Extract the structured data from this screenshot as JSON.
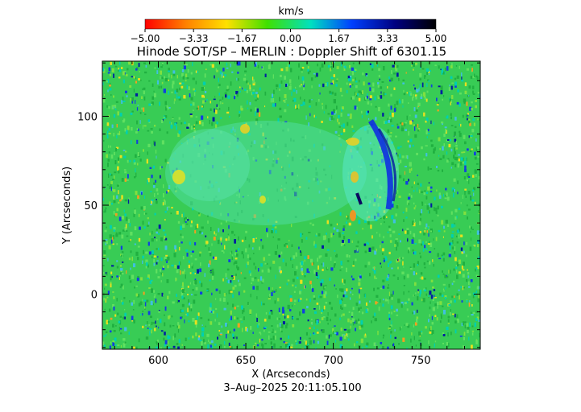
{
  "colorbar": {
    "unit": "km/s",
    "ticks": [
      "-5.00",
      "-3.33",
      "-1.67",
      "0.00",
      "1.67",
      "3.33",
      "5.00"
    ],
    "range": [
      -5,
      5
    ],
    "colors": [
      "#ff0000",
      "#ff8000",
      "#ffe000",
      "#40e000",
      "#00e0c0",
      "#0040ff",
      "#000080",
      "#000000"
    ]
  },
  "title": "Hinode SOT/SP – MERLIN : Doppler Shift of 6301.15",
  "x_axis": {
    "label": "X (Arcseconds)",
    "ticks": [
      "600",
      "650",
      "700",
      "750"
    ],
    "range": [
      568,
      784
    ]
  },
  "y_axis": {
    "label": "Y (Arcseconds)",
    "ticks": [
      "0",
      "50",
      "100"
    ],
    "range": [
      -31,
      131
    ]
  },
  "timestamp": "3–Aug–2025 20:11:05.100",
  "map": {
    "dominant_color": "#30d060",
    "features": [
      "central-quiet-region",
      "blue-redshift-arc-east",
      "yellow-blueshift-patches"
    ]
  }
}
